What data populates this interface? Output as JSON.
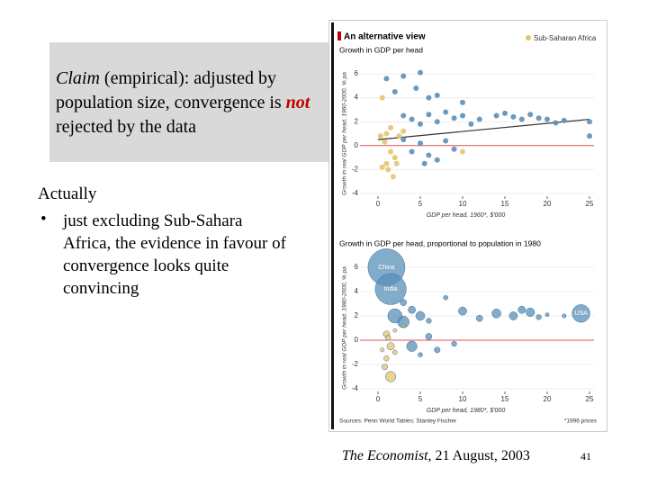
{
  "slide": {
    "claim": {
      "lead": "Claim",
      "mid": " (empirical): adjusted by population size, convergence is ",
      "emph": "not",
      "tail": " rejected by the data"
    },
    "actually": "Actually",
    "bullet": "just excluding Sub-Sahara Africa, the evidence in favour of convergence looks quite convincing",
    "caption": {
      "source": "The Economist",
      "date": ", 21 August, 2003"
    },
    "page": "41"
  },
  "figure": {
    "title": "An alternative view",
    "legend": {
      "label": "Sub-Saharan Africa",
      "color": "#e6c46a"
    },
    "sources": "Sources: Penn World Tables; Stanley Fischer",
    "note": "*1996 prices",
    "top": {
      "title": "Growth in GDP per head",
      "ylabel": "Growth in real GDP per head, 1960-2000, % pa",
      "xlabel": "GDP per head, 1960*, $'000",
      "xlim": [
        0,
        25
      ],
      "ylim": [
        -4,
        6
      ],
      "xticks": [
        0,
        5,
        10,
        15,
        20,
        25
      ],
      "yticks": [
        6,
        4,
        2,
        0,
        -2,
        -4
      ],
      "others_color": "#5a8fb8",
      "others": {
        "x": [
          1,
          2,
          3,
          4.5,
          5,
          6,
          7,
          3,
          4,
          5,
          6,
          7,
          8,
          9,
          10,
          10,
          11,
          12,
          14,
          15,
          16,
          17,
          18,
          19,
          20,
          21,
          22,
          25,
          25,
          3,
          4,
          5,
          6,
          7,
          5.5,
          8,
          9
        ],
        "y": [
          5.6,
          4.5,
          5.8,
          4.8,
          6.1,
          4,
          4.2,
          2.5,
          2.2,
          1.8,
          2.6,
          2,
          2.8,
          2.3,
          3.6,
          2.5,
          1.8,
          2.2,
          2.5,
          2.7,
          2.4,
          2.2,
          2.6,
          2.3,
          2.2,
          1.9,
          2.1,
          2,
          0.8,
          0.5,
          -0.5,
          0.2,
          -0.8,
          -1.2,
          -1.5,
          0.4,
          -0.3
        ]
      },
      "africa": {
        "x": [
          0.5,
          1,
          0.8,
          1.5,
          1,
          2,
          1.2,
          0.5,
          2.5,
          1.8,
          3,
          10,
          0.3,
          1.5,
          2.2
        ],
        "y": [
          4,
          1,
          0.3,
          -0.5,
          -1.5,
          -1,
          -2,
          -1.8,
          0.8,
          -2.6,
          1.2,
          -0.5,
          0.8,
          1.5,
          -1.5
        ]
      },
      "trend": {
        "x": [
          0,
          25
        ],
        "y": [
          0.5,
          2.2
        ]
      }
    },
    "bottom": {
      "title": "Growth in GDP per head, proportional to population in 1980",
      "ylabel": "Growth in real GDP per head, 1980-2000, % pa",
      "xlabel": "GDP per head, 1980*, $'000",
      "xlim": [
        0,
        25
      ],
      "ylim": [
        -4,
        6
      ],
      "xticks": [
        0,
        5,
        10,
        15,
        20,
        25
      ],
      "yticks": [
        6,
        4,
        2,
        0,
        -2,
        -4
      ],
      "others_color": "#5a8fb8",
      "others": {
        "x": [
          1,
          1.5,
          24,
          3,
          4,
          5,
          6,
          8,
          10,
          12,
          14,
          16,
          17,
          18,
          19,
          20,
          22,
          4,
          6,
          7,
          9,
          5,
          3,
          2
        ],
        "y": [
          6,
          4.2,
          2.2,
          3.1,
          2.5,
          2,
          1.6,
          3.5,
          2.4,
          1.8,
          2.2,
          2,
          2.5,
          2.3,
          1.9,
          2.1,
          2,
          -0.5,
          0.3,
          -0.8,
          -0.3,
          -1.2,
          1.5,
          2
        ],
        "size": [
          1000,
          700,
          230,
          30,
          40,
          60,
          20,
          15,
          50,
          30,
          60,
          50,
          40,
          55,
          20,
          10,
          12,
          80,
          30,
          25,
          20,
          15,
          100,
          150
        ]
      },
      "africa": {
        "x": [
          1,
          1.5,
          1,
          2,
          0.8,
          1.5,
          2,
          0.5,
          3,
          1.2
        ],
        "y": [
          0.5,
          -0.5,
          -1.5,
          -1,
          -2.2,
          -3,
          0.8,
          -0.8,
          1.2,
          0.2
        ],
        "size": [
          30,
          40,
          20,
          15,
          25,
          80,
          10,
          12,
          8,
          20
        ]
      },
      "labels": [
        {
          "text": "China",
          "index": 0
        },
        {
          "text": "India",
          "index": 1
        },
        {
          "text": "USA",
          "index": 2
        }
      ]
    }
  }
}
